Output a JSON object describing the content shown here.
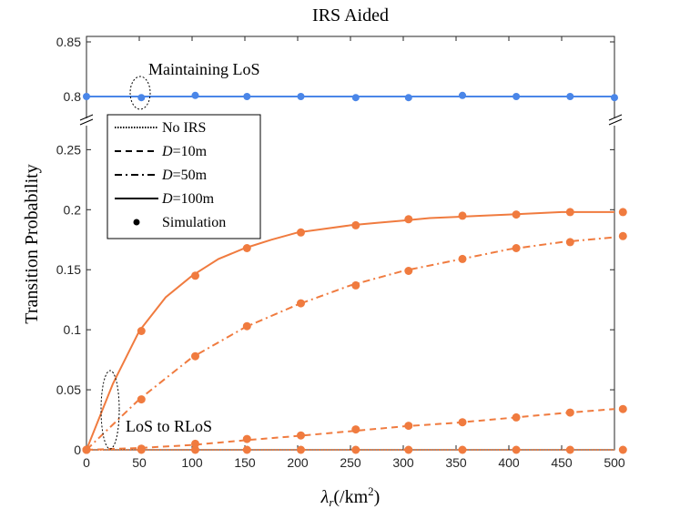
{
  "chart_data": {
    "type": "line",
    "title": "IRS Aided",
    "xlabel_symbol": "λ",
    "xlabel_sub": "r",
    "xlabel_unit": "(/km",
    "xlabel_sup": "2",
    "xlabel_close": ")",
    "ylabel": "Transition Probability",
    "xlim": [
      0,
      500
    ],
    "x_ticks": [
      "0",
      "50",
      "100",
      "150",
      "200",
      "250",
      "300",
      "350",
      "400",
      "450",
      "500"
    ],
    "y_ticks_lower": [
      "0",
      "0.05",
      "0.1",
      "0.15",
      "0.2",
      "0.25"
    ],
    "y_ticks_upper": [
      "0.8",
      "0.85"
    ],
    "colors": {
      "orange": "#f07b3f",
      "blue": "#4a86e8"
    },
    "upper_series": {
      "name": "Maintaining LoS",
      "x": [
        0,
        50,
        100,
        150,
        200,
        250,
        300,
        350,
        400,
        450,
        500
      ],
      "line": [
        0.8,
        0.8,
        0.8,
        0.8,
        0.8,
        0.8,
        0.8,
        0.8,
        0.8,
        0.8,
        0.8
      ],
      "sim_x": [
        0,
        52,
        103,
        152,
        203,
        255,
        305,
        356,
        407,
        458,
        508
      ],
      "sim": [
        0.8,
        0.799,
        0.801,
        0.8,
        0.8,
        0.799,
        0.799,
        0.801,
        0.8,
        0.8,
        0.799
      ]
    },
    "lower_series": [
      {
        "name": "No IRS",
        "style": "dotted",
        "x": [
          0,
          50,
          100,
          150,
          200,
          250,
          300,
          350,
          400,
          450,
          500
        ],
        "values": [
          0,
          0,
          0,
          0,
          0,
          0,
          0,
          0,
          0,
          0,
          0
        ]
      },
      {
        "name": "D=10m",
        "style": "dashed",
        "x": [
          0,
          50,
          100,
          150,
          200,
          250,
          300,
          350,
          400,
          450,
          500
        ],
        "values": [
          0,
          0.0015,
          0.004,
          0.008,
          0.0115,
          0.0155,
          0.0195,
          0.0225,
          0.0265,
          0.0305,
          0.034
        ]
      },
      {
        "name": "D=50m",
        "style": "dashdot",
        "x": [
          0,
          50,
          100,
          150,
          200,
          250,
          300,
          350,
          400,
          450,
          500
        ],
        "values": [
          0,
          0.042,
          0.077,
          0.102,
          0.121,
          0.137,
          0.149,
          0.158,
          0.167,
          0.173,
          0.177
        ]
      },
      {
        "name": "D=100m",
        "style": "solid",
        "x": [
          0,
          25,
          50,
          75,
          100,
          125,
          150,
          175,
          200,
          225,
          250,
          275,
          300,
          325,
          350,
          375,
          400,
          425,
          450,
          475,
          500
        ],
        "values": [
          0,
          0.055,
          0.099,
          0.127,
          0.145,
          0.159,
          0.168,
          0.175,
          0.181,
          0.184,
          0.187,
          0.189,
          0.191,
          0.193,
          0.194,
          0.195,
          0.196,
          0.197,
          0.198,
          0.198,
          0.198
        ]
      }
    ],
    "simulation_points": [
      {
        "series": "No IRS",
        "x": [
          0,
          52,
          103,
          152,
          203,
          255,
          305,
          356,
          407,
          458,
          508
        ],
        "values": [
          0,
          0,
          0,
          0,
          0,
          0,
          0,
          0,
          0,
          0,
          0
        ]
      },
      {
        "series": "D=10m",
        "x": [
          0,
          52,
          103,
          152,
          203,
          255,
          305,
          356,
          407,
          458,
          508
        ],
        "values": [
          0,
          0.001,
          0.005,
          0.009,
          0.012,
          0.017,
          0.02,
          0.023,
          0.027,
          0.031,
          0.034
        ]
      },
      {
        "series": "D=50m",
        "x": [
          0,
          52,
          103,
          152,
          203,
          255,
          305,
          356,
          407,
          458,
          508
        ],
        "values": [
          0,
          0.042,
          0.078,
          0.103,
          0.122,
          0.137,
          0.149,
          0.159,
          0.168,
          0.173,
          0.178
        ]
      },
      {
        "series": "D=100m",
        "x": [
          0,
          52,
          103,
          152,
          203,
          255,
          305,
          356,
          407,
          458,
          508
        ],
        "values": [
          0,
          0.099,
          0.145,
          0.168,
          0.181,
          0.187,
          0.192,
          0.195,
          0.196,
          0.198,
          0.198
        ]
      }
    ],
    "legend": {
      "placement": "top-left",
      "items": [
        {
          "label": "No IRS",
          "style": "dotted"
        },
        {
          "label_var": "D",
          "label_rest": "=10m",
          "style": "dashed"
        },
        {
          "label_var": "D",
          "label_rest": "=50m",
          "style": "dashdot"
        },
        {
          "label_var": "D",
          "label_rest": "=100m",
          "style": "solid"
        },
        {
          "label": "Simulation",
          "style": "marker"
        }
      ]
    },
    "annotations": {
      "upper": "Maintaining LoS",
      "lower": "LoS to RLoS"
    }
  }
}
